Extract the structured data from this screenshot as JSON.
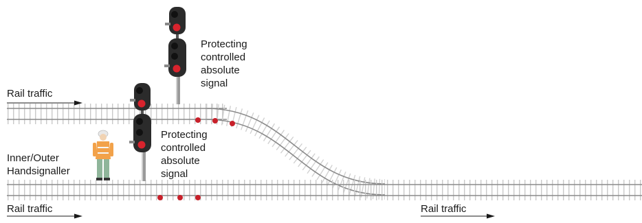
{
  "labels": {
    "rail_traffic_top_left": "Rail traffic",
    "rail_traffic_bottom_left": "Rail traffic",
    "rail_traffic_bottom_right": "Rail traffic",
    "handsignaller": [
      "Inner/Outer",
      "Handsignaller"
    ],
    "upper_signal": [
      "Protecting",
      "controlled",
      "absolute",
      "signal"
    ],
    "lower_signal": [
      "Protecting",
      "controlled",
      "absolute",
      "signal"
    ]
  },
  "colors": {
    "track": "#8a8a8a",
    "sleeper": "#c4c4c4",
    "signal_head": "#2b2b2b",
    "signal_red": "#d9232d",
    "detonator": "#c8202a",
    "vest": "#f2a24a",
    "trousers": "#8fb59a"
  }
}
